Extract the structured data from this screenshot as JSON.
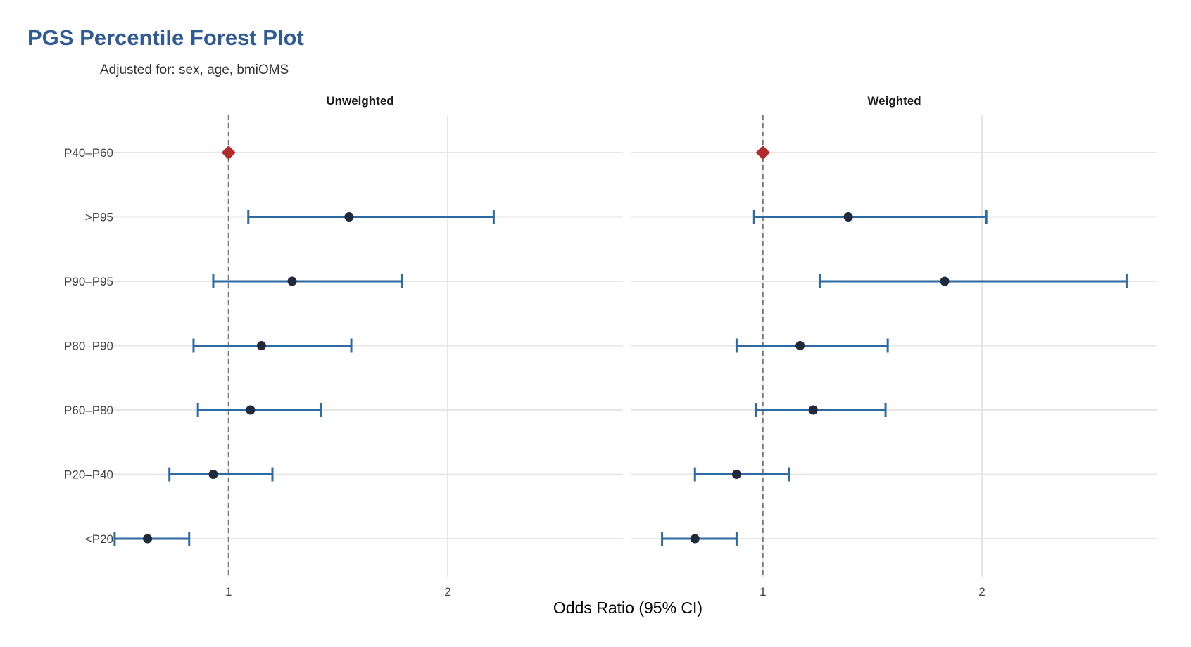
{
  "title": "PGS Percentile Forest Plot",
  "subtitle": "Adjusted for: sex, age, bmiOMS",
  "chart_data": {
    "type": "forest",
    "categories": [
      ">P95",
      "P90–P95",
      "P80–P90",
      "P60–P80",
      "P40–P60",
      "P20–P40",
      "<P20"
    ],
    "display_order": [
      "P40–P60",
      ">P95",
      "P90–P95",
      "P80–P90",
      "P60–P80",
      "P20–P40",
      "<P20"
    ],
    "reference_category": "P40–P60",
    "xlabel": "Odds Ratio (95% CI)",
    "xlim": [
      0.4,
      2.8
    ],
    "x_ticks": [
      1,
      2
    ],
    "reference_line": 1,
    "grid": true,
    "colors": {
      "ci": "#2e6aa0",
      "point": "#1f2a3c",
      "reference": "#b22a2a",
      "ref_line": "#777777",
      "grid": "#e6e6e6"
    },
    "panels": [
      {
        "name": "Unweighted",
        "rows": [
          {
            "category": "P40–P60",
            "or": 1.0,
            "reference": true
          },
          {
            "category": ">P95",
            "or": 1.55,
            "lo": 1.09,
            "hi": 2.21
          },
          {
            "category": "P90–P95",
            "or": 1.29,
            "lo": 0.93,
            "hi": 1.79
          },
          {
            "category": "P80–P90",
            "or": 1.15,
            "lo": 0.84,
            "hi": 1.56
          },
          {
            "category": "P60–P80",
            "or": 1.1,
            "lo": 0.86,
            "hi": 1.42
          },
          {
            "category": "P20–P40",
            "or": 0.93,
            "lo": 0.73,
            "hi": 1.2
          },
          {
            "category": "<P20",
            "or": 0.63,
            "lo": 0.48,
            "hi": 0.82
          }
        ]
      },
      {
        "name": "Weighted",
        "rows": [
          {
            "category": "P40–P60",
            "or": 1.0,
            "reference": true
          },
          {
            "category": ">P95",
            "or": 1.39,
            "lo": 0.96,
            "hi": 2.02
          },
          {
            "category": "P90–P95",
            "or": 1.83,
            "lo": 1.26,
            "hi": 2.66
          },
          {
            "category": "P80–P90",
            "or": 1.17,
            "lo": 0.88,
            "hi": 1.57
          },
          {
            "category": "P60–P80",
            "or": 1.23,
            "lo": 0.97,
            "hi": 1.56
          },
          {
            "category": "P20–P40",
            "or": 0.88,
            "lo": 0.69,
            "hi": 1.12
          },
          {
            "category": "<P20",
            "or": 0.69,
            "lo": 0.54,
            "hi": 0.88
          }
        ]
      }
    ]
  }
}
